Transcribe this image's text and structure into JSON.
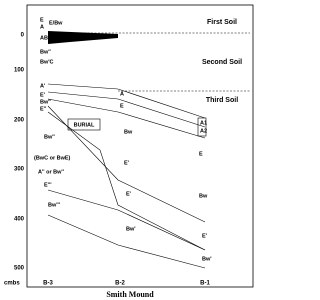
{
  "y_axis": {
    "ticks": [
      "0",
      "100",
      "200",
      "300",
      "400",
      "500"
    ],
    "unit": "cmbs"
  },
  "x_labels": [
    "B-3",
    "B-2",
    "B-1"
  ],
  "caption": "Smith Mound",
  "soils": [
    "First Soil",
    "Second Soil",
    "Third Soil"
  ],
  "burial": "BURIAL",
  "b3_horizons": [
    "E",
    "A",
    "E/Bw",
    "ABw",
    "Bw''",
    "Bw'C",
    "A'",
    "E'",
    "Bw''",
    "E''",
    "Bw''",
    "(BwC or BwE)",
    "A'' or Bw''",
    "E'''",
    "Bw'''"
  ],
  "b2_horizons": [
    "A",
    "E",
    "Bw",
    "E'",
    "E'",
    "Bw'"
  ],
  "b1_horizons": [
    "A1",
    "A2",
    "E",
    "Bw",
    "E'",
    "Bw'"
  ]
}
